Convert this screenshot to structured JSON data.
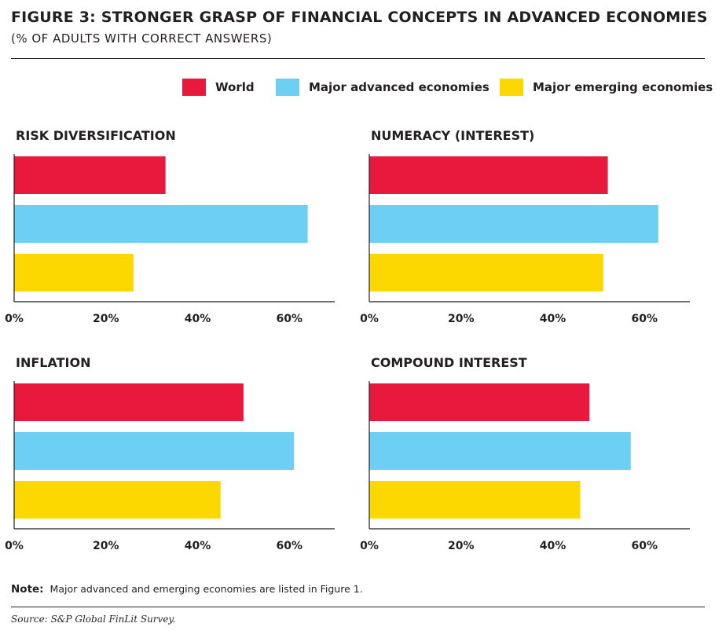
{
  "title": "FIGURE 3: STRONGER GRASP OF FINANCIAL CONCEPTS IN ADVANCED ECONOMIES",
  "subtitle": "(% OF ADULTS WITH CORRECT ANSWERS)",
  "legend": [
    {
      "label": "World",
      "color": "#e8193c"
    },
    {
      "label": "Major advanced economies",
      "color": "#6dcff4"
    },
    {
      "label": "Major emerging economies",
      "color": "#fdd800"
    }
  ],
  "note": {
    "label": "Note:",
    "text": "Major advanced and emerging economies are listed in Figure 1."
  },
  "source": "Source: S&P Global FinLit Survey.",
  "chart_data": [
    {
      "type": "bar",
      "orientation": "horizontal",
      "title": "RISK DIVERSIFICATION",
      "categories": [
        "World",
        "Major advanced economies",
        "Major emerging economies"
      ],
      "values": [
        33,
        64,
        26
      ],
      "xlim": [
        0,
        68
      ],
      "xticks": [
        "0%",
        "20%",
        "40%",
        "60%"
      ]
    },
    {
      "type": "bar",
      "orientation": "horizontal",
      "title": "NUMERACY (INTEREST)",
      "categories": [
        "World",
        "Major advanced economies",
        "Major emerging economies"
      ],
      "values": [
        52,
        63,
        51
      ],
      "xlim": [
        0,
        68
      ],
      "xticks": [
        "0%",
        "20%",
        "40%",
        "60%"
      ]
    },
    {
      "type": "bar",
      "orientation": "horizontal",
      "title": "INFLATION",
      "categories": [
        "World",
        "Major advanced economies",
        "Major emerging economies"
      ],
      "values": [
        50,
        61,
        45
      ],
      "xlim": [
        0,
        68
      ],
      "xticks": [
        "0%",
        "20%",
        "40%",
        "60%"
      ]
    },
    {
      "type": "bar",
      "orientation": "horizontal",
      "title": "COMPOUND INTEREST",
      "categories": [
        "World",
        "Major advanced economies",
        "Major emerging economies"
      ],
      "values": [
        48,
        57,
        46
      ],
      "xlim": [
        0,
        68
      ],
      "xticks": [
        "0%",
        "20%",
        "40%",
        "60%"
      ]
    }
  ]
}
